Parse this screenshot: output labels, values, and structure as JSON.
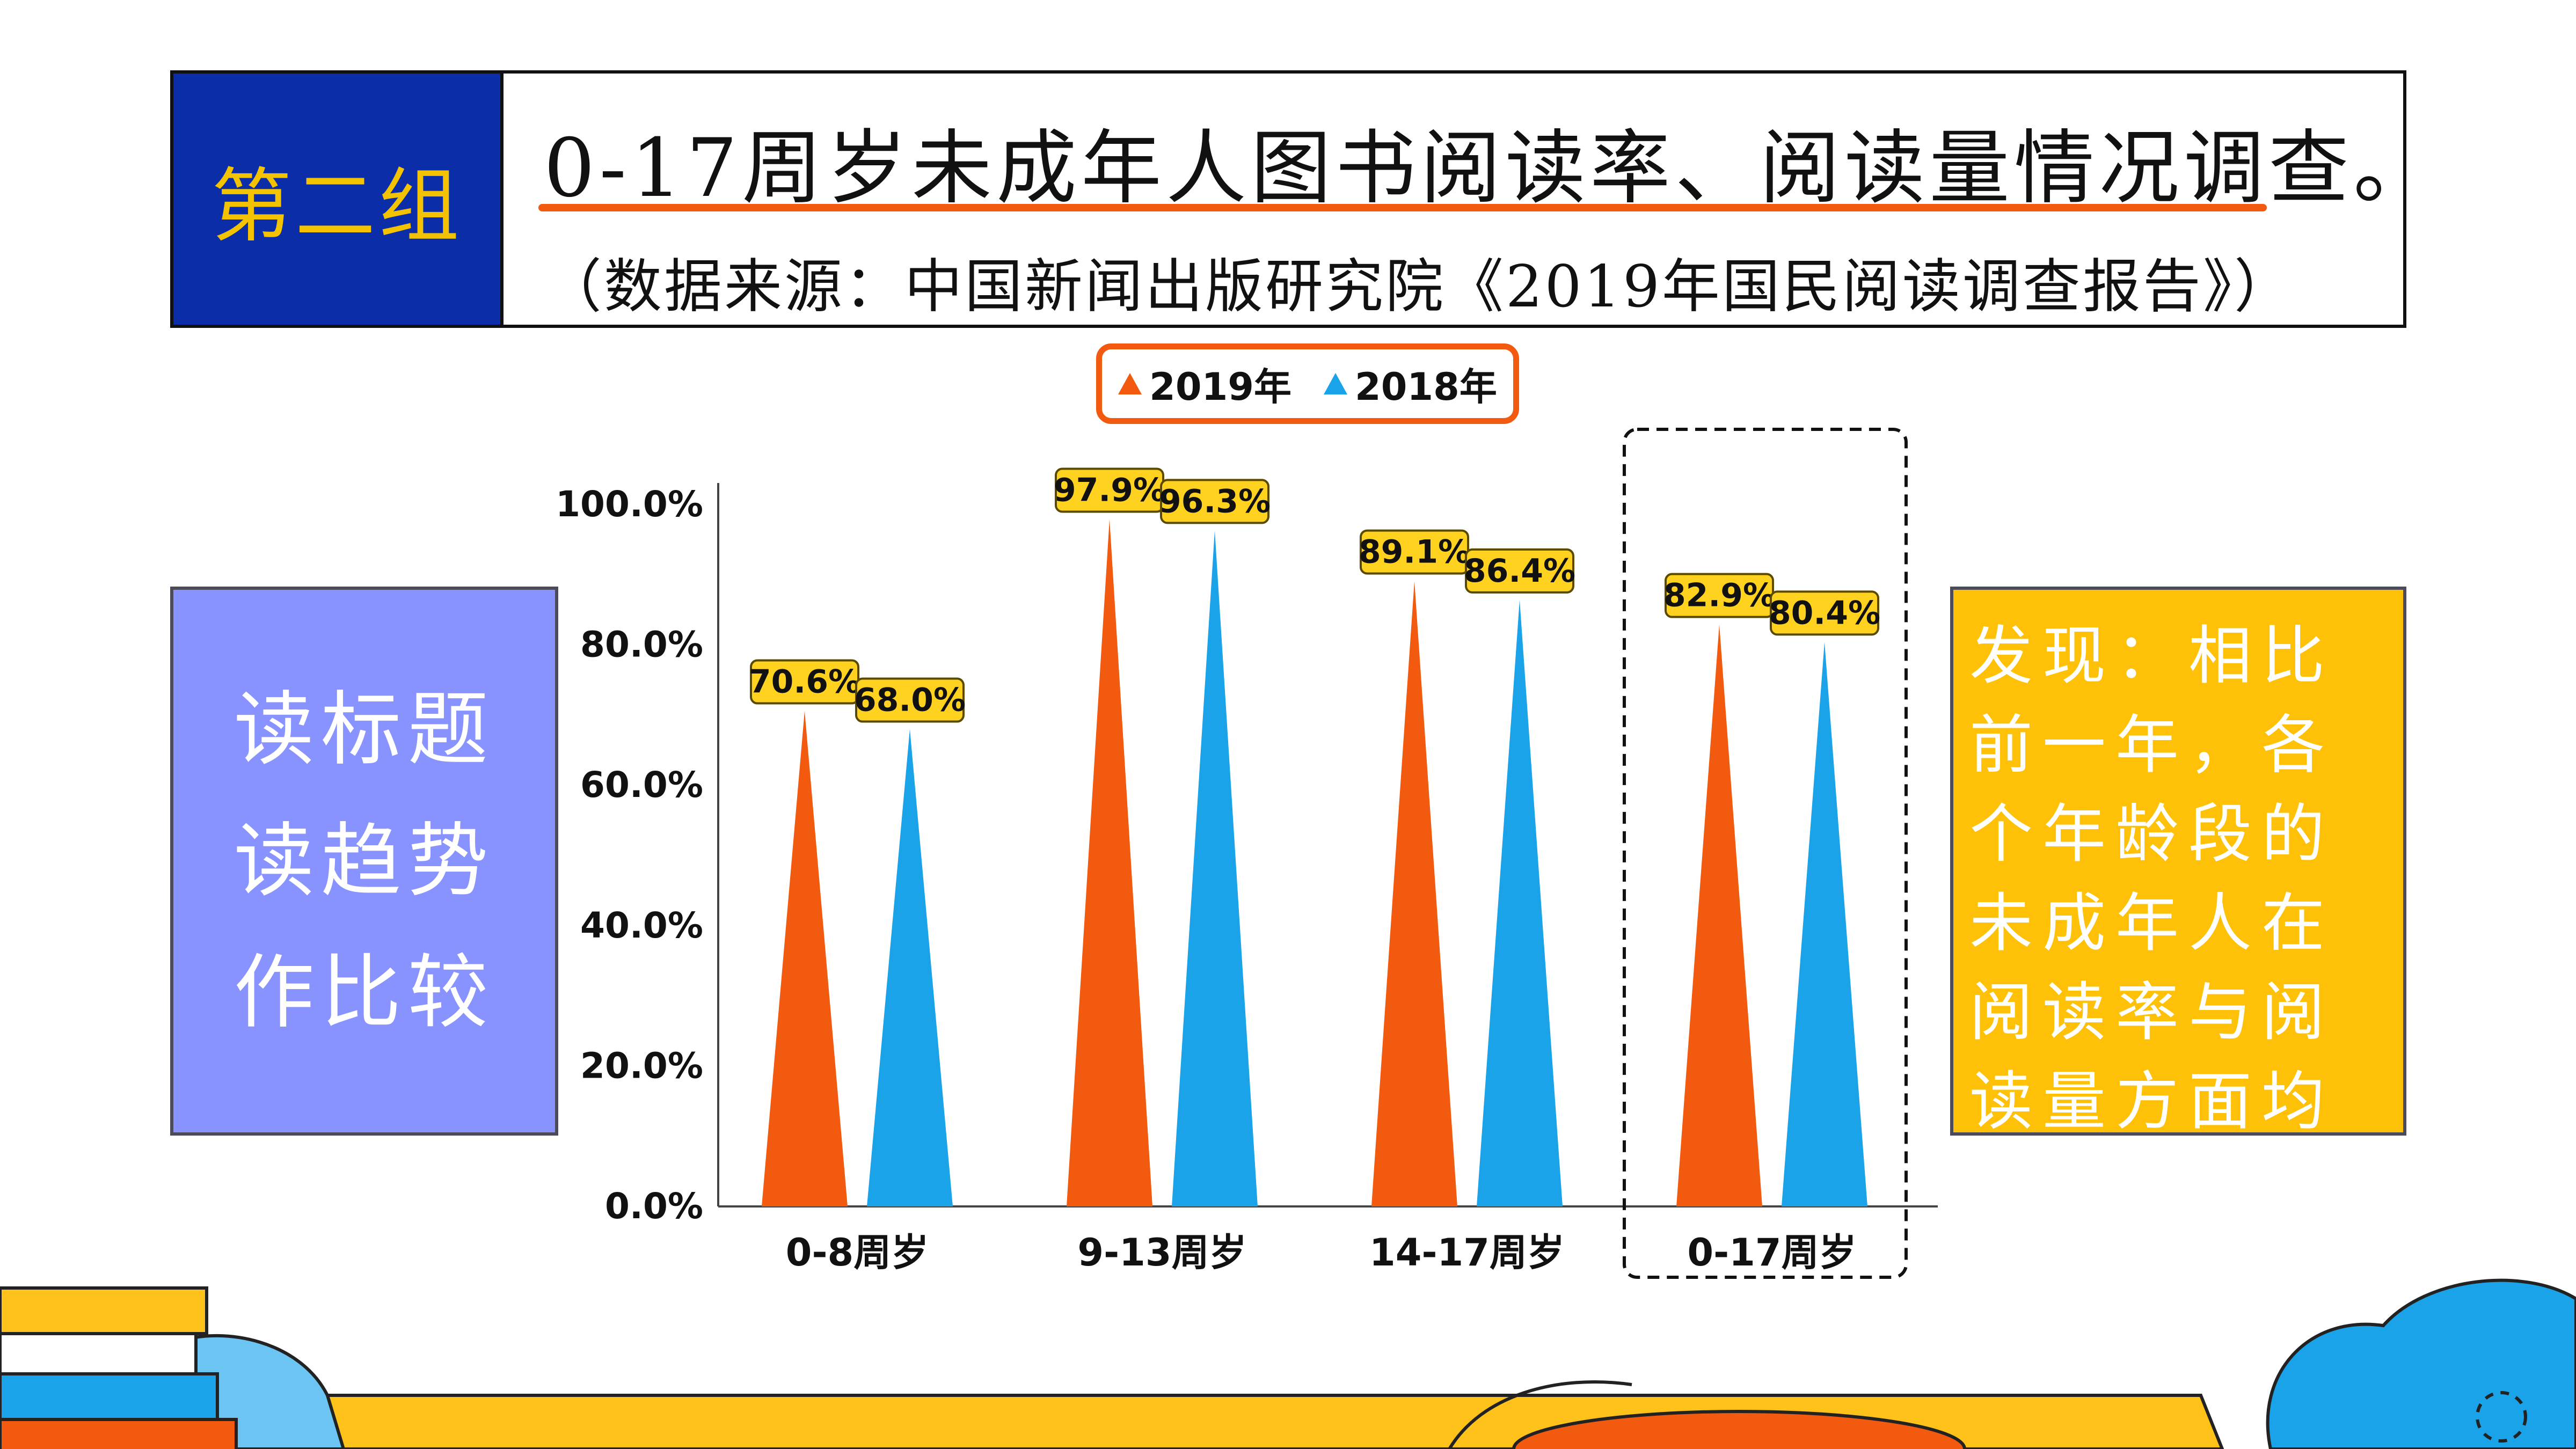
{
  "header": {
    "group_label": "第二组",
    "title": "0-17周岁未成年人图书阅读率、阅读量情况调查。",
    "source": "（数据来源：中国新闻出版研究院《2019年国民阅读调查报告》）"
  },
  "instructions": [
    "读标题",
    "读趋势",
    "作比较"
  ],
  "findings": "发现：相比前一年，各个年龄段的未成年人在阅读率与阅读量方面均有所提高",
  "colors": {
    "series_2019": "#f25a10",
    "series_2018": "#1aa3e8",
    "label_bg": "#ffd21f",
    "banner_blue": "#0b2ea8",
    "instr_bg": "#8893ff",
    "find_bg": "#ffc107"
  },
  "chart_data": {
    "type": "bar",
    "title": "",
    "xlabel": "",
    "ylabel": "",
    "ylim": [
      0,
      100
    ],
    "y_ticks": [
      "0.0%",
      "20.0%",
      "40.0%",
      "60.0%",
      "80.0%",
      "100.0%"
    ],
    "categories": [
      "0-8周岁",
      "9-13周岁",
      "14-17周岁",
      "0-17周岁"
    ],
    "series": [
      {
        "name": "2019年",
        "values": [
          70.6,
          97.9,
          89.1,
          82.9
        ],
        "labels": [
          "70.6%",
          "97.9%",
          "89.1%",
          "82.9%"
        ]
      },
      {
        "name": "2018年",
        "values": [
          68.0,
          96.3,
          86.4,
          80.4
        ],
        "labels": [
          "68.0%",
          "96.3%",
          "86.4%",
          "80.4%"
        ]
      }
    ],
    "bar_shape": "triangle",
    "legend_position": "top-center",
    "highlighted_category": "0-17周岁",
    "grid": false
  }
}
